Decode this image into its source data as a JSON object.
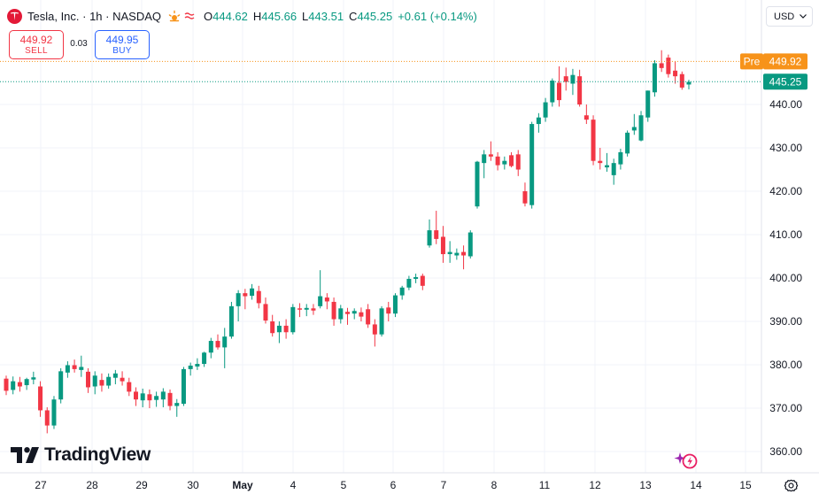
{
  "header": {
    "symbol_title": "Tesla, Inc. · 1h · NASDAQ",
    "session_icons": [
      "sun-icon",
      "wave-icon"
    ],
    "ohlc": {
      "open_label": "O",
      "open": "444.62",
      "high_label": "H",
      "high": "445.66",
      "low_label": "L",
      "low": "443.51",
      "close_label": "C",
      "close": "445.25"
    },
    "change": "+0.61 (+0.14%)"
  },
  "trade": {
    "sell_price": "449.92",
    "sell_label": "SELL",
    "spread": "0.03",
    "buy_price": "449.95",
    "buy_label": "BUY"
  },
  "currency": "USD",
  "brand": "TradingView",
  "colors": {
    "up": "#089981",
    "down": "#f23645",
    "pre": "#f7931a",
    "buy": "#2962ff",
    "grid": "#f0f3fa"
  },
  "chart_data": {
    "type": "candlestick",
    "y_ticks": [
      "360.00",
      "370.00",
      "380.00",
      "390.00",
      "400.00",
      "410.00",
      "420.00",
      "430.00",
      "440.00"
    ],
    "x_ticks": [
      "27",
      "28",
      "29",
      "30",
      "May",
      "4",
      "5",
      "6",
      "7",
      "8",
      "11",
      "12",
      "13",
      "14",
      "15"
    ],
    "ylim": [
      356,
      465
    ],
    "price_labels": [
      {
        "prefix": "Pre",
        "value": "449.92",
        "color": "#f7931a"
      },
      {
        "prefix": "",
        "value": "445.25",
        "color": "#089981"
      }
    ],
    "candles": [
      [
        376.8,
        377.5,
        373.0,
        374.0
      ],
      [
        374.2,
        377.3,
        373.2,
        376.2
      ],
      [
        376.0,
        377.2,
        373.8,
        375.0
      ],
      [
        375.3,
        377.0,
        374.2,
        376.7
      ],
      [
        376.6,
        378.4,
        375.5,
        377.1
      ],
      [
        375.0,
        376.2,
        368.0,
        369.5
      ],
      [
        369.5,
        370.2,
        364.2,
        366.0
      ],
      [
        366.0,
        372.8,
        365.2,
        372.0
      ],
      [
        372.0,
        379.2,
        371.1,
        378.5
      ],
      [
        378.2,
        380.8,
        377.0,
        379.9
      ],
      [
        379.9,
        381.2,
        378.2,
        379.0
      ],
      [
        378.8,
        382.1,
        377.2,
        379.5
      ],
      [
        378.4,
        379.2,
        373.5,
        374.8
      ],
      [
        375.0,
        378.5,
        373.2,
        377.5
      ],
      [
        376.5,
        378.0,
        373.8,
        375.2
      ],
      [
        375.2,
        378.0,
        374.5,
        377.2
      ],
      [
        377.0,
        378.8,
        375.5,
        378.0
      ],
      [
        377.0,
        378.5,
        375.2,
        376.2
      ],
      [
        376.0,
        377.0,
        372.8,
        373.8
      ],
      [
        373.8,
        374.8,
        370.5,
        372.0
      ],
      [
        371.8,
        374.5,
        370.2,
        373.4
      ],
      [
        373.2,
        374.3,
        370.0,
        371.8
      ],
      [
        371.9,
        373.8,
        370.3,
        372.8
      ],
      [
        372.0,
        374.6,
        370.2,
        373.8
      ],
      [
        373.5,
        374.3,
        369.5,
        370.5
      ],
      [
        370.5,
        372.1,
        368.0,
        371.2
      ],
      [
        371.0,
        379.5,
        370.5,
        379.0
      ],
      [
        379.0,
        380.5,
        377.5,
        379.8
      ],
      [
        379.6,
        381.5,
        378.8,
        380.2
      ],
      [
        380.2,
        383.0,
        379.5,
        382.8
      ],
      [
        382.8,
        386.2,
        381.5,
        385.5
      ],
      [
        385.5,
        387.0,
        383.5,
        384.0
      ],
      [
        384.0,
        388.5,
        379.2,
        386.5
      ],
      [
        386.5,
        394.5,
        386.0,
        393.5
      ],
      [
        393.5,
        397.2,
        390.0,
        396.5
      ],
      [
        396.5,
        397.5,
        392.8,
        395.8
      ],
      [
        395.9,
        398.6,
        395.0,
        397.6
      ],
      [
        397.0,
        398.2,
        393.0,
        394.2
      ],
      [
        394.0,
        395.5,
        389.5,
        390.2
      ],
      [
        390.0,
        391.5,
        386.5,
        387.3
      ],
      [
        387.5,
        390.0,
        385.0,
        389.0
      ],
      [
        389.0,
        390.5,
        386.0,
        387.5
      ],
      [
        387.5,
        394.0,
        387.0,
        393.3
      ],
      [
        393.0,
        394.2,
        391.0,
        392.7
      ],
      [
        392.7,
        394.0,
        391.2,
        393.1
      ],
      [
        393.0,
        394.0,
        391.5,
        392.5
      ],
      [
        393.5,
        401.8,
        393.0,
        395.8
      ],
      [
        395.5,
        396.5,
        392.8,
        394.6
      ],
      [
        394.5,
        395.5,
        389.0,
        390.5
      ],
      [
        390.5,
        393.8,
        389.5,
        393.0
      ],
      [
        392.2,
        393.1,
        389.2,
        391.7
      ],
      [
        391.8,
        393.0,
        390.5,
        392.4
      ],
      [
        392.1,
        393.2,
        390.0,
        391.1
      ],
      [
        392.8,
        394.0,
        388.5,
        389.3
      ],
      [
        389.3,
        390.5,
        384.2,
        387.0
      ],
      [
        387.0,
        393.5,
        386.5,
        393.0
      ],
      [
        393.2,
        394.5,
        390.0,
        391.8
      ],
      [
        391.8,
        396.5,
        391.0,
        396.0
      ],
      [
        396.0,
        398.2,
        395.0,
        397.8
      ],
      [
        397.8,
        400.5,
        397.2,
        399.8
      ],
      [
        399.8,
        401.0,
        398.8,
        400.2
      ],
      [
        400.5,
        401.0,
        397.2,
        398.2
      ],
      [
        407.5,
        413.5,
        407.0,
        411.0
      ],
      [
        411.0,
        415.5,
        407.8,
        409.0
      ],
      [
        409.5,
        412.0,
        403.5,
        405.5
      ],
      [
        405.5,
        408.5,
        403.5,
        406.0
      ],
      [
        405.2,
        406.8,
        404.2,
        405.8
      ],
      [
        406.0,
        407.5,
        402.0,
        405.2
      ],
      [
        405.0,
        411.0,
        404.5,
        410.5
      ],
      [
        416.5,
        427.0,
        416.0,
        426.8
      ],
      [
        426.5,
        429.5,
        423.0,
        428.5
      ],
      [
        428.5,
        431.5,
        427.0,
        428.0
      ],
      [
        428.0,
        429.0,
        424.8,
        426.0
      ],
      [
        426.2,
        428.0,
        425.0,
        427.0
      ],
      [
        428.3,
        429.0,
        425.5,
        425.8
      ],
      [
        428.5,
        429.5,
        423.5,
        425.0
      ],
      [
        420.0,
        422.0,
        416.5,
        417.2
      ],
      [
        416.8,
        436.0,
        416.0,
        435.5
      ],
      [
        435.5,
        438.0,
        433.5,
        437.0
      ],
      [
        437.0,
        441.5,
        436.0,
        440.5
      ],
      [
        440.5,
        446.0,
        439.5,
        445.5
      ],
      [
        445.0,
        448.8,
        439.5,
        441.0
      ],
      [
        446.5,
        448.5,
        443.2,
        445.2
      ],
      [
        444.8,
        448.2,
        442.2,
        446.8
      ],
      [
        446.5,
        448.0,
        439.5,
        440.0
      ],
      [
        437.5,
        440.0,
        435.5,
        436.5
      ],
      [
        436.5,
        437.5,
        426.0,
        427.0
      ],
      [
        427.0,
        430.0,
        425.0,
        426.5
      ],
      [
        425.5,
        428.8,
        424.5,
        426.0
      ],
      [
        423.7,
        427.5,
        421.5,
        426.5
      ],
      [
        426.2,
        429.8,
        425.0,
        429.0
      ],
      [
        428.7,
        434.0,
        428.0,
        433.5
      ],
      [
        434.0,
        437.8,
        433.0,
        434.8
      ],
      [
        431.7,
        438.5,
        431.5,
        437.5
      ],
      [
        437.0,
        443.2,
        436.0,
        443.2
      ],
      [
        442.8,
        450.2,
        441.8,
        449.5
      ],
      [
        449.5,
        452.5,
        447.5,
        448.4
      ],
      [
        450.8,
        451.5,
        446.2,
        447.0
      ],
      [
        447.8,
        450.0,
        444.8,
        446.5
      ],
      [
        447.0,
        447.6,
        443.4,
        443.9
      ],
      [
        444.6,
        445.7,
        443.5,
        445.2
      ]
    ]
  }
}
